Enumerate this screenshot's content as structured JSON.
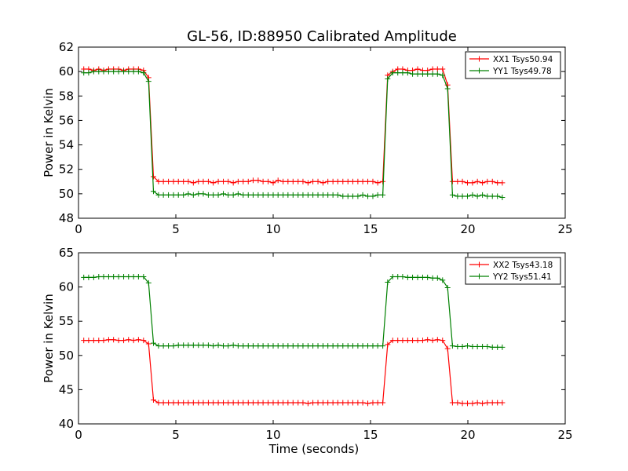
{
  "figure": {
    "title": "GL-56, ID:88950 Calibrated Amplitude"
  },
  "chart_data": [
    {
      "type": "line",
      "title": "GL-56, ID:88950 Calibrated Amplitude",
      "xlabel": "",
      "ylabel": "Power in Kelvin",
      "xlim": [
        0,
        25
      ],
      "ylim": [
        48,
        62
      ],
      "xticks": [
        0,
        5,
        10,
        15,
        20,
        25
      ],
      "yticks": [
        48,
        50,
        52,
        54,
        56,
        58,
        60,
        62
      ],
      "grid": false,
      "legend_position": "top-right",
      "series": [
        {
          "name": "XX1 Tsys50.94",
          "color": "#ff0000",
          "marker": "+",
          "x": [
            0.27,
            0.52,
            0.78,
            1.04,
            1.29,
            1.55,
            1.8,
            2.06,
            2.32,
            2.57,
            2.83,
            3.08,
            3.34,
            3.6,
            3.85,
            4.11,
            4.36,
            4.62,
            4.88,
            5.13,
            5.39,
            5.64,
            5.9,
            6.16,
            6.41,
            6.67,
            6.92,
            7.18,
            7.44,
            7.69,
            7.95,
            8.2,
            8.46,
            8.72,
            8.97,
            9.23,
            9.48,
            9.74,
            10.0,
            10.25,
            10.51,
            10.76,
            11.02,
            11.28,
            11.53,
            11.79,
            12.04,
            12.3,
            12.56,
            12.81,
            13.07,
            13.32,
            13.58,
            13.84,
            14.09,
            14.35,
            14.6,
            14.86,
            15.12,
            15.37,
            15.63,
            15.88,
            16.14,
            16.4,
            16.65,
            16.91,
            17.16,
            17.42,
            17.68,
            17.93,
            18.19,
            18.44,
            18.7,
            18.96,
            19.21,
            19.47,
            19.72,
            19.98,
            20.24,
            20.49,
            20.75,
            21.0,
            21.26,
            21.52,
            21.77
          ],
          "y": [
            60.2,
            60.2,
            60.1,
            60.2,
            60.1,
            60.2,
            60.2,
            60.2,
            60.1,
            60.2,
            60.2,
            60.2,
            60.1,
            59.5,
            51.4,
            51.0,
            51.0,
            51.0,
            51.0,
            51.0,
            51.0,
            51.0,
            50.9,
            51.0,
            51.0,
            51.0,
            50.9,
            51.0,
            51.0,
            51.0,
            50.9,
            51.0,
            51.0,
            51.0,
            51.1,
            51.1,
            51.0,
            51.0,
            50.9,
            51.1,
            51.0,
            51.0,
            51.0,
            51.0,
            51.0,
            50.9,
            51.0,
            51.0,
            50.9,
            51.0,
            51.0,
            51.0,
            51.0,
            51.0,
            51.0,
            51.0,
            51.0,
            51.0,
            51.0,
            50.9,
            51.0,
            59.7,
            60.0,
            60.2,
            60.2,
            60.1,
            60.1,
            60.2,
            60.1,
            60.1,
            60.2,
            60.2,
            60.2,
            58.9,
            51.0,
            51.0,
            51.0,
            50.9,
            50.9,
            51.0,
            50.9,
            51.0,
            51.0,
            50.9,
            50.9
          ]
        },
        {
          "name": "YY1 Tsys49.78",
          "color": "#008000",
          "marker": "+",
          "x": [
            0.27,
            0.52,
            0.78,
            1.04,
            1.29,
            1.55,
            1.8,
            2.06,
            2.32,
            2.57,
            2.83,
            3.08,
            3.34,
            3.6,
            3.85,
            4.11,
            4.36,
            4.62,
            4.88,
            5.13,
            5.39,
            5.64,
            5.9,
            6.16,
            6.41,
            6.67,
            6.92,
            7.18,
            7.44,
            7.69,
            7.95,
            8.2,
            8.46,
            8.72,
            8.97,
            9.23,
            9.48,
            9.74,
            10.0,
            10.25,
            10.51,
            10.76,
            11.02,
            11.28,
            11.53,
            11.79,
            12.04,
            12.3,
            12.56,
            12.81,
            13.07,
            13.32,
            13.58,
            13.84,
            14.09,
            14.35,
            14.6,
            14.86,
            15.12,
            15.37,
            15.63,
            15.88,
            16.14,
            16.4,
            16.65,
            16.91,
            17.16,
            17.42,
            17.68,
            17.93,
            18.19,
            18.44,
            18.7,
            18.96,
            19.21,
            19.47,
            19.72,
            19.98,
            20.24,
            20.49,
            20.75,
            21.0,
            21.26,
            21.52,
            21.77
          ],
          "y": [
            59.9,
            59.9,
            60.0,
            60.0,
            60.0,
            60.0,
            60.0,
            60.0,
            60.0,
            60.0,
            60.0,
            60.0,
            59.9,
            59.2,
            50.2,
            49.9,
            49.9,
            49.9,
            49.9,
            49.9,
            49.9,
            50.0,
            49.9,
            50.0,
            50.0,
            49.9,
            49.9,
            49.9,
            50.0,
            49.9,
            49.9,
            50.0,
            49.9,
            49.9,
            49.9,
            49.9,
            49.9,
            49.9,
            49.9,
            49.9,
            49.9,
            49.9,
            49.9,
            49.9,
            49.9,
            49.9,
            49.9,
            49.9,
            49.9,
            49.9,
            49.9,
            49.9,
            49.8,
            49.8,
            49.8,
            49.8,
            49.9,
            49.8,
            49.8,
            49.9,
            49.9,
            59.4,
            59.9,
            59.9,
            59.9,
            59.9,
            59.8,
            59.8,
            59.8,
            59.8,
            59.8,
            59.8,
            59.7,
            58.6,
            49.9,
            49.8,
            49.8,
            49.8,
            49.9,
            49.8,
            49.9,
            49.8,
            49.8,
            49.8,
            49.7
          ]
        }
      ]
    },
    {
      "type": "line",
      "title": "",
      "xlabel": "Time (seconds)",
      "ylabel": "Power in Kelvin",
      "xlim": [
        0,
        25
      ],
      "ylim": [
        40,
        65
      ],
      "xticks": [
        0,
        5,
        10,
        15,
        20,
        25
      ],
      "yticks": [
        40,
        45,
        50,
        55,
        60,
        65
      ],
      "grid": false,
      "legend_position": "top-right",
      "series": [
        {
          "name": "XX2 Tsys43.18",
          "color": "#ff0000",
          "marker": "+",
          "x": [
            0.27,
            0.52,
            0.78,
            1.04,
            1.29,
            1.55,
            1.8,
            2.06,
            2.32,
            2.57,
            2.83,
            3.08,
            3.34,
            3.6,
            3.85,
            4.11,
            4.36,
            4.62,
            4.88,
            5.13,
            5.39,
            5.64,
            5.9,
            6.16,
            6.41,
            6.67,
            6.92,
            7.18,
            7.44,
            7.69,
            7.95,
            8.2,
            8.46,
            8.72,
            8.97,
            9.23,
            9.48,
            9.74,
            10.0,
            10.25,
            10.51,
            10.76,
            11.02,
            11.28,
            11.53,
            11.79,
            12.04,
            12.3,
            12.56,
            12.81,
            13.07,
            13.32,
            13.58,
            13.84,
            14.09,
            14.35,
            14.6,
            14.86,
            15.12,
            15.37,
            15.63,
            15.88,
            16.14,
            16.4,
            16.65,
            16.91,
            17.16,
            17.42,
            17.68,
            17.93,
            18.19,
            18.44,
            18.7,
            18.96,
            19.21,
            19.47,
            19.72,
            19.98,
            20.24,
            20.49,
            20.75,
            21.0,
            21.26,
            21.52,
            21.77
          ],
          "y": [
            52.2,
            52.2,
            52.2,
            52.2,
            52.2,
            52.3,
            52.3,
            52.2,
            52.2,
            52.3,
            52.2,
            52.3,
            52.2,
            51.7,
            43.5,
            43.1,
            43.1,
            43.1,
            43.1,
            43.1,
            43.1,
            43.1,
            43.1,
            43.1,
            43.1,
            43.1,
            43.1,
            43.1,
            43.1,
            43.1,
            43.1,
            43.1,
            43.1,
            43.1,
            43.1,
            43.1,
            43.1,
            43.1,
            43.1,
            43.1,
            43.1,
            43.1,
            43.1,
            43.1,
            43.1,
            43.0,
            43.1,
            43.1,
            43.1,
            43.1,
            43.1,
            43.1,
            43.1,
            43.1,
            43.1,
            43.1,
            43.1,
            43.0,
            43.1,
            43.1,
            43.1,
            51.6,
            52.2,
            52.2,
            52.2,
            52.2,
            52.2,
            52.2,
            52.2,
            52.3,
            52.2,
            52.3,
            52.2,
            51.0,
            43.1,
            43.1,
            43.0,
            43.0,
            43.0,
            43.1,
            43.0,
            43.1,
            43.1,
            43.1,
            43.1
          ]
        },
        {
          "name": "YY2 Tsys51.41",
          "color": "#008000",
          "marker": "+",
          "x": [
            0.27,
            0.52,
            0.78,
            1.04,
            1.29,
            1.55,
            1.8,
            2.06,
            2.32,
            2.57,
            2.83,
            3.08,
            3.34,
            3.6,
            3.85,
            4.11,
            4.36,
            4.62,
            4.88,
            5.13,
            5.39,
            5.64,
            5.9,
            6.16,
            6.41,
            6.67,
            6.92,
            7.18,
            7.44,
            7.69,
            7.95,
            8.2,
            8.46,
            8.72,
            8.97,
            9.23,
            9.48,
            9.74,
            10.0,
            10.25,
            10.51,
            10.76,
            11.02,
            11.28,
            11.53,
            11.79,
            12.04,
            12.3,
            12.56,
            12.81,
            13.07,
            13.32,
            13.58,
            13.84,
            14.09,
            14.35,
            14.6,
            14.86,
            15.12,
            15.37,
            15.63,
            15.88,
            16.14,
            16.4,
            16.65,
            16.91,
            17.16,
            17.42,
            17.68,
            17.93,
            18.19,
            18.44,
            18.7,
            18.96,
            19.21,
            19.47,
            19.72,
            19.98,
            20.24,
            20.49,
            20.75,
            21.0,
            21.26,
            21.52,
            21.77
          ],
          "y": [
            61.4,
            61.4,
            61.4,
            61.5,
            61.5,
            61.5,
            61.5,
            61.5,
            61.5,
            61.5,
            61.5,
            61.5,
            61.5,
            60.6,
            51.8,
            51.4,
            51.4,
            51.4,
            51.4,
            51.5,
            51.5,
            51.5,
            51.5,
            51.5,
            51.5,
            51.5,
            51.4,
            51.5,
            51.4,
            51.4,
            51.5,
            51.4,
            51.4,
            51.4,
            51.4,
            51.4,
            51.4,
            51.4,
            51.4,
            51.4,
            51.4,
            51.4,
            51.4,
            51.4,
            51.4,
            51.4,
            51.4,
            51.4,
            51.4,
            51.4,
            51.4,
            51.4,
            51.4,
            51.4,
            51.4,
            51.4,
            51.4,
            51.4,
            51.4,
            51.4,
            51.4,
            60.7,
            61.5,
            61.5,
            61.5,
            61.4,
            61.4,
            61.4,
            61.4,
            61.4,
            61.3,
            61.3,
            61.0,
            59.9,
            51.4,
            51.3,
            51.3,
            51.4,
            51.3,
            51.3,
            51.3,
            51.3,
            51.2,
            51.2,
            51.2
          ]
        }
      ]
    }
  ]
}
